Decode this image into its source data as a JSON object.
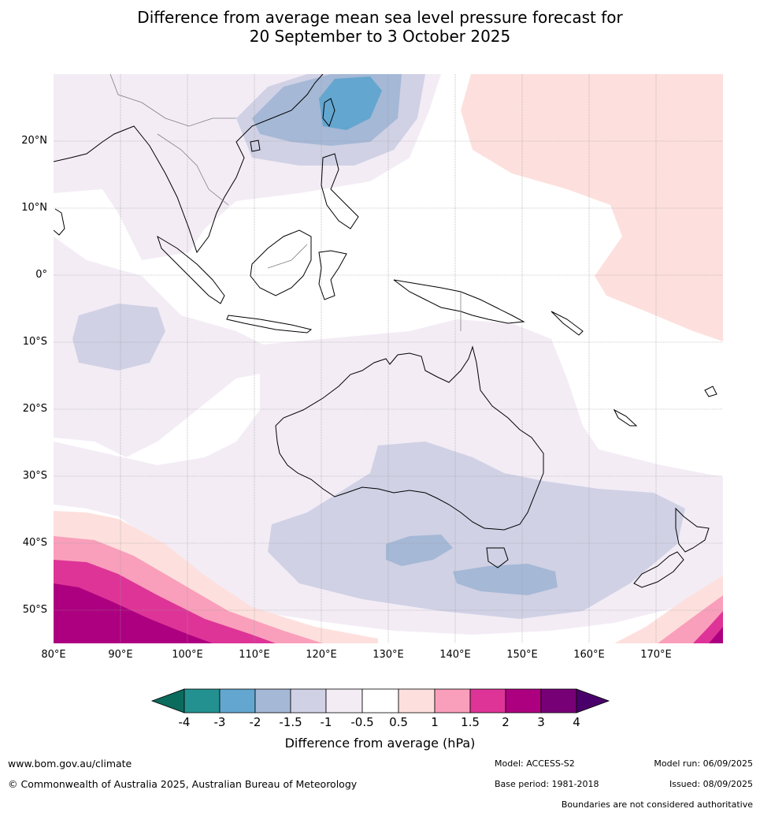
{
  "title": {
    "line1": "Difference from average mean sea level pressure forecast for",
    "line2": "20 September to 3 October 2025"
  },
  "map": {
    "lat_labels": [
      "20°N",
      "10°N",
      "0°",
      "10°S",
      "20°S",
      "30°S",
      "40°S",
      "50°S"
    ],
    "lon_labels": [
      "80°E",
      "90°E",
      "100°E",
      "110°E",
      "120°E",
      "130°E",
      "140°E",
      "150°E",
      "160°E",
      "170°E"
    ],
    "colors": {
      "c_neg4": "#0b6b5c",
      "c_neg3": "#23918f",
      "c_neg2": "#63a6cf",
      "c_neg15": "#a5b8d6",
      "c_neg1": "#d0d1e5",
      "c_neg05": "#f3ecf5",
      "c_0": "#ffffff",
      "c_05": "#fde0dd",
      "c_1": "#f99fbb",
      "c_15": "#de3497",
      "c_2": "#ad0080",
      "c_3": "#780077",
      "c_4": "#4a006a"
    }
  },
  "colorbar": {
    "ticks": [
      "-4",
      "-3",
      "-2",
      "-1.5",
      "-1",
      "-0.5",
      "0.5",
      "1",
      "1.5",
      "2",
      "3",
      "4"
    ],
    "label": "Difference from average (hPa)"
  },
  "footer": {
    "website": "www.bom.gov.au/climate",
    "copyright": "© Commonwealth of Australia 2025, Australian Bureau of Meteorology",
    "model": "Model: ACCESS-S2",
    "base_period": "Base period: 1981-2018",
    "model_run": "Model run: 06/09/2025",
    "issued": "Issued: 08/09/2025",
    "disclaimer": "Boundaries are not considered authoritative"
  }
}
